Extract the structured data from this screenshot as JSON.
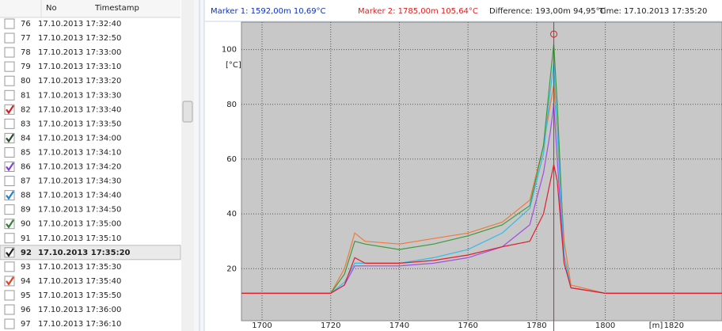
{
  "list": {
    "columns": [
      "No",
      "Timestamp"
    ],
    "rows": [
      {
        "no": 76,
        "timestamp": "17.10.2013 17:32:40",
        "checked": false
      },
      {
        "no": 77,
        "timestamp": "17.10.2013 17:32:50",
        "checked": false
      },
      {
        "no": 78,
        "timestamp": "17.10.2013 17:33:00",
        "checked": false
      },
      {
        "no": 79,
        "timestamp": "17.10.2013 17:33:10",
        "checked": false
      },
      {
        "no": 80,
        "timestamp": "17.10.2013 17:33:20",
        "checked": false
      },
      {
        "no": 81,
        "timestamp": "17.10.2013 17:33:30",
        "checked": false
      },
      {
        "no": 82,
        "timestamp": "17.10.2013 17:33:40",
        "checked": true,
        "color": "#d02020"
      },
      {
        "no": 83,
        "timestamp": "17.10.2013 17:33:50",
        "checked": false
      },
      {
        "no": 84,
        "timestamp": "17.10.2013 17:34:00",
        "checked": true,
        "color": "#2a4a2a"
      },
      {
        "no": 85,
        "timestamp": "17.10.2013 17:34:10",
        "checked": false
      },
      {
        "no": 86,
        "timestamp": "17.10.2013 17:34:20",
        "checked": true,
        "color": "#8040d0"
      },
      {
        "no": 87,
        "timestamp": "17.10.2013 17:34:30",
        "checked": false
      },
      {
        "no": 88,
        "timestamp": "17.10.2013 17:34:40",
        "checked": true,
        "color": "#2080d0"
      },
      {
        "no": 89,
        "timestamp": "17.10.2013 17:34:50",
        "checked": false
      },
      {
        "no": 90,
        "timestamp": "17.10.2013 17:35:00",
        "checked": true,
        "color": "#308030"
      },
      {
        "no": 91,
        "timestamp": "17.10.2013 17:35:10",
        "checked": false
      },
      {
        "no": 92,
        "timestamp": "17.10.2013 17:35:20",
        "checked": true,
        "color": "#202020",
        "selected": true
      },
      {
        "no": 93,
        "timestamp": "17.10.2013 17:35:30",
        "checked": false
      },
      {
        "no": 94,
        "timestamp": "17.10.2013 17:35:40",
        "checked": true,
        "color": "#e04020"
      },
      {
        "no": 95,
        "timestamp": "17.10.2013 17:35:50",
        "checked": false
      },
      {
        "no": 96,
        "timestamp": "17.10.2013 17:36:00",
        "checked": false
      },
      {
        "no": 97,
        "timestamp": "17.10.2013 17:36:10",
        "checked": false
      }
    ]
  },
  "header": {
    "marker1": "Marker 1: 1592,00m 10,69°C",
    "marker2": "Marker 2: 1785,00m 105,64°C",
    "difference": "Difference: 193,00m 94,95°C",
    "time": "Time: 17.10.2013 17:35:20"
  },
  "chart_data": {
    "type": "line",
    "x_label": "[m]",
    "y_label": "[°C]",
    "x": [
      1694,
      1700,
      1710,
      1720,
      1724,
      1727,
      1730,
      1740,
      1750,
      1760,
      1770,
      1778,
      1782,
      1784,
      1785,
      1786,
      1788,
      1790,
      1800,
      1810,
      1834
    ],
    "xlim": [
      1694,
      1834
    ],
    "xticks": [
      1700,
      1720,
      1740,
      1760,
      1780,
      1800,
      1820
    ],
    "ylim": [
      1,
      110
    ],
    "yticks": [
      20,
      40,
      60,
      80,
      100
    ],
    "grid": true,
    "marker": {
      "x": 1785,
      "y": 105.64,
      "color": "#e02020"
    },
    "series": [
      {
        "color": "#f07a3a",
        "values": [
          11,
          11,
          11,
          11,
          20,
          33,
          30,
          29,
          31,
          33,
          37,
          45,
          65,
          80,
          87,
          70,
          30,
          14,
          11,
          11,
          11
        ]
      },
      {
        "color": "#3c9a3c",
        "values": [
          11,
          11,
          11,
          11,
          18,
          30,
          29,
          27,
          29,
          32,
          36,
          43,
          65,
          90,
          102,
          80,
          25,
          13,
          11,
          11,
          11
        ]
      },
      {
        "color": "#33bbe8",
        "values": [
          11,
          11,
          11,
          11,
          15,
          22,
          22,
          22,
          24,
          27,
          33,
          42,
          62,
          85,
          95,
          70,
          25,
          13,
          11,
          11,
          11
        ]
      },
      {
        "color": "#a050e0",
        "values": [
          11,
          11,
          11,
          11,
          14,
          21,
          21,
          21,
          22,
          24,
          28,
          36,
          55,
          70,
          80,
          60,
          22,
          13,
          11,
          11,
          11
        ]
      },
      {
        "color": "#e02030",
        "values": [
          11,
          11,
          11,
          11,
          14,
          24,
          22,
          22,
          23,
          25,
          28,
          30,
          40,
          52,
          58,
          52,
          22,
          13,
          11,
          11,
          11
        ]
      }
    ]
  }
}
